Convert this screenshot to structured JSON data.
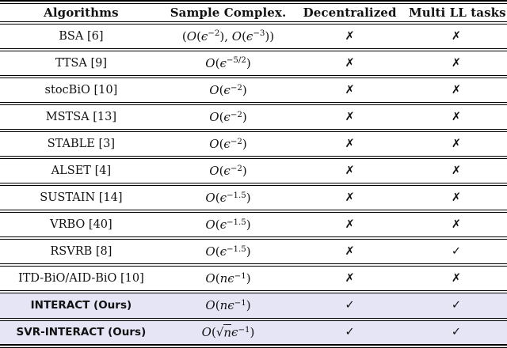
{
  "figure": {
    "kind": "algorithm-comparison-table"
  },
  "table": {
    "columns": [
      {
        "label": "Algorithms"
      },
      {
        "label": "Sample Complex."
      },
      {
        "label": "Decentralized"
      },
      {
        "label": "Multi LL tasks"
      }
    ],
    "rows": [
      {
        "algorithm": "BSA [6]",
        "complexity": "(O(ϵ^{−2}), O(ϵ^{−3}))",
        "decentralized": "✗",
        "multi_ll": "✗",
        "highlight": false
      },
      {
        "algorithm": "TTSA [9]",
        "complexity": "O(ϵ^{−5/2})",
        "decentralized": "✗",
        "multi_ll": "✗",
        "highlight": false
      },
      {
        "algorithm": "stocBiO [10]",
        "complexity": "O(ϵ^{−2})",
        "decentralized": "✗",
        "multi_ll": "✗",
        "highlight": false
      },
      {
        "algorithm": "MSTSA [13]",
        "complexity": "O(ϵ^{−2})",
        "decentralized": "✗",
        "multi_ll": "✗",
        "highlight": false
      },
      {
        "algorithm": "STABLE [3]",
        "complexity": "O(ϵ^{−2})",
        "decentralized": "✗",
        "multi_ll": "✗",
        "highlight": false
      },
      {
        "algorithm": "ALSET [4]",
        "complexity": "O(ϵ^{−2})",
        "decentralized": "✗",
        "multi_ll": "✗",
        "highlight": false
      },
      {
        "algorithm": "SUSTAIN [14]",
        "complexity": "O(ϵ^{−1.5})",
        "decentralized": "✗",
        "multi_ll": "✗",
        "highlight": false
      },
      {
        "algorithm": "VRBO [40]",
        "complexity": "O(ϵ^{−1.5})",
        "decentralized": "✗",
        "multi_ll": "✗",
        "highlight": false
      },
      {
        "algorithm": "RSVRB [8]",
        "complexity": "O(ϵ^{−1.5})",
        "decentralized": "✗",
        "multi_ll": "✓",
        "highlight": false
      },
      {
        "algorithm": "ITD-BiO/AID-BiO [10]",
        "complexity": "O(nϵ^{−1})",
        "decentralized": "✗",
        "multi_ll": "✗",
        "highlight": false
      },
      {
        "algorithm": "INTERACT (Ours)",
        "complexity": "O(nϵ^{−1})",
        "decentralized": "✓",
        "multi_ll": "✓",
        "highlight": true
      },
      {
        "algorithm": "SVR-INTERACT (Ours)",
        "complexity": "O(√{n}ϵ^{−1})",
        "decentralized": "✓",
        "multi_ll": "✓",
        "highlight": true
      }
    ],
    "marks": {
      "yes": "✓",
      "no": "✗"
    },
    "highlight_color": "#e5e5f6",
    "text_color": "#111111",
    "rule_color": "#000000"
  }
}
